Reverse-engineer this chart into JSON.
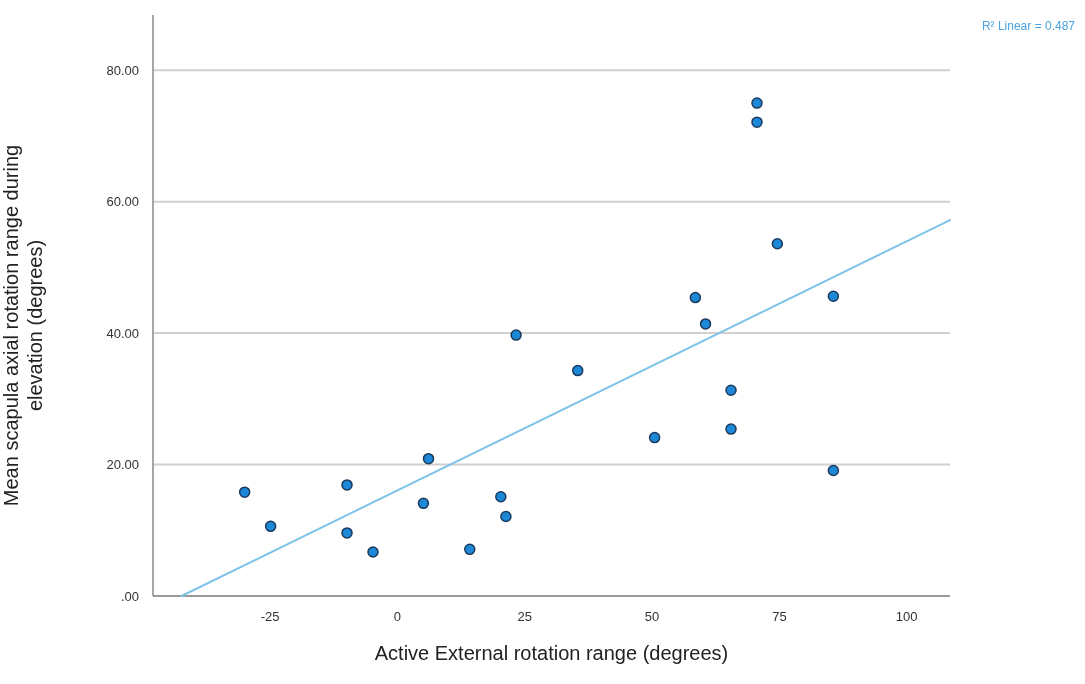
{
  "chart_data": {
    "type": "scatter",
    "xlabel": "Active External rotation range (degrees)",
    "ylabel": "Mean scapula axial rotation range during elevation (degrees)",
    "annotations": [
      "R² Linear = 0.487"
    ],
    "series": [
      {
        "color": "#1e88d8",
        "x": [
          -30,
          -24.9,
          -9.9,
          -9.9,
          -4.8,
          5.1,
          6.1,
          14.2,
          20.3,
          21.3,
          23.3,
          35.4,
          50.5,
          58.5,
          60.5,
          65.5,
          65.5,
          70.6,
          70.6,
          74.6,
          85.6,
          85.6
        ],
        "values": [
          15.8,
          10.6,
          16.9,
          9.6,
          6.7,
          14.1,
          20.9,
          7.1,
          15.1,
          12.1,
          39.7,
          34.3,
          24.1,
          45.4,
          41.4,
          31.3,
          25.4,
          75.0,
          72.1,
          53.6,
          45.6,
          19.1
        ]
      },
      {
        "type": "line",
        "marker": "none",
        "color": "#7ec3ea",
        "x": [
          -42.4,
          108.5
        ],
        "values": [
          0,
          57.2
        ]
      }
    ],
    "xlim": [
      -48,
      108.5
    ],
    "xticks": [
      -25,
      0,
      25,
      50,
      75,
      100
    ],
    "ylim": [
      0,
      88.4
    ],
    "yticks": [
      {
        "value": 0,
        "label": ".00"
      },
      {
        "value": 20,
        "label": "20.00"
      },
      {
        "value": 40,
        "label": "40.00"
      },
      {
        "value": 60,
        "label": "60.00"
      },
      {
        "value": 80,
        "label": "80.00"
      }
    ],
    "grid": "y",
    "marker": "circle",
    "line_style": "solid"
  }
}
